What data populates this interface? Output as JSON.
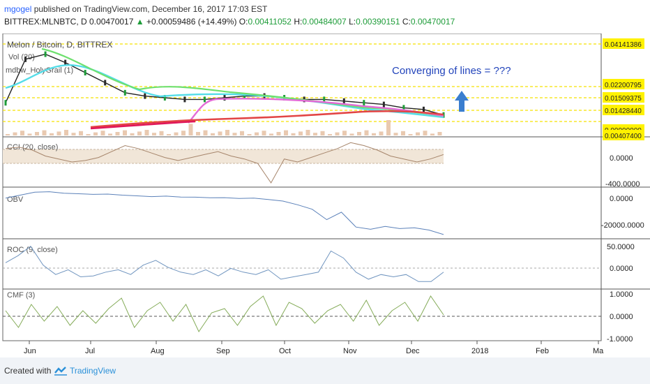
{
  "header": {
    "author": "mgogel",
    "published_text": "published on TradingView.com, December 16, 2017 17:03 EST",
    "symbol_line": "BITTREX:MLNBTC, D 0.00470017",
    "change_arrow": "▲",
    "change": "+0.00059486 (+14.49%)",
    "o_label": "O:",
    "o_value": "0.00411052",
    "h_label": "H:",
    "h_value": "0.00484007",
    "l_label": "L:",
    "l_value": "0.00390151",
    "c_label": "C:",
    "c_value": "0.00470017"
  },
  "footer": {
    "created_with": "Created with",
    "brand": "TradingView"
  },
  "colors": {
    "up": "#1e9c39",
    "link": "#2962ff",
    "annotation": "#2244bb",
    "arrow": "#3a7ecf",
    "price_label_bg": "#fff200",
    "ma_cyan": "#55dde8",
    "ma_green": "#6ee06e",
    "ma_magenta": "#e36bd7",
    "ma_red": "#e24545",
    "ma_crimson": "#e0185a",
    "cci_line": "#a6856b",
    "obv_line": "#5b81b9",
    "roc_line": "#6f94bf",
    "cmf_line": "#84ab58"
  },
  "chart_data": [
    {
      "type": "line",
      "title": "Melon / Bitcoin, D, BITTREX",
      "indicator_labels": [
        "Vol (20)",
        "mdbw_HolyGrail (1)"
      ],
      "annotation": "Converging of lines = ???",
      "x_axis_labels": [
        "Jun",
        "Jul",
        "Aug",
        "Sep",
        "Oct",
        "Nov",
        "Dec",
        "2018",
        "Feb",
        "Ma"
      ],
      "price_labels": [
        "0.04141386",
        "0.02200795",
        "0.01509375",
        "0.01428440",
        "0.00000000",
        "0.00407400"
      ],
      "series": [
        {
          "values": [
            0.012,
            0.038,
            0.041,
            0.036,
            0.03,
            0.024,
            0.018,
            0.016,
            0.015,
            0.014,
            0.014,
            0.015,
            0.016,
            0.016,
            0.015,
            0.014,
            0.014,
            0.013,
            0.012,
            0.011,
            0.009,
            0.008,
            0.0047
          ]
        }
      ]
    },
    {
      "type": "line",
      "title": "CCI (20, close)",
      "axis_labels": [
        "0.0000",
        "-400.0000"
      ],
      "series": [
        {
          "values": [
            80,
            100,
            60,
            -20,
            -60,
            -100,
            -80,
            -40,
            40,
            120,
            80,
            20,
            -40,
            -80,
            -40,
            0,
            40,
            -20,
            -60,
            -120,
            -380,
            -60,
            -100,
            -40,
            20,
            80,
            160,
            120,
            60,
            -20,
            -60,
            -100,
            -60,
            0
          ]
        }
      ]
    },
    {
      "type": "line",
      "title": "OBV",
      "axis_labels": [
        "0.0000",
        "-20000.0000"
      ],
      "series": [
        {
          "values": [
            -500,
            1500,
            3500,
            3800,
            2800,
            2400,
            2000,
            2200,
            1500,
            1000,
            500,
            800,
            200,
            100,
            -300,
            -200,
            -800,
            -500,
            -1500,
            -2500,
            -5000,
            -8000,
            -15000,
            -10000,
            -20000,
            -21500,
            -19500,
            -21000,
            -20500,
            -22000,
            -25000
          ]
        }
      ]
    },
    {
      "type": "line",
      "title": "ROC (9, close)",
      "axis_labels": [
        "50.0000",
        "0.0000"
      ],
      "series": [
        {
          "values": [
            20,
            35,
            55,
            15,
            -5,
            5,
            -10,
            -8,
            0,
            5,
            -5,
            15,
            25,
            10,
            0,
            -5,
            5,
            -8,
            8,
            0,
            -5,
            5,
            -15,
            -10,
            -5,
            0,
            45,
            30,
            0,
            -15,
            -5,
            -10,
            -5,
            -20,
            -20,
            0
          ]
        }
      ]
    },
    {
      "type": "line",
      "title": "CMF (3)",
      "axis_labels": [
        "1.0000",
        "0.0000",
        "-1.0000"
      ],
      "series": [
        {
          "values": [
            0.2,
            -0.6,
            0.5,
            -0.3,
            0.4,
            -0.5,
            0.2,
            -0.4,
            0.3,
            0.8,
            -0.6,
            0.2,
            0.6,
            -0.3,
            0.5,
            -0.8,
            0.1,
            0.3,
            -0.5,
            0.4,
            0.9,
            -0.5,
            0.6,
            0.3,
            -0.4,
            0.2,
            0.5,
            -0.3,
            0.7,
            -0.5,
            0.2,
            0.6,
            -0.3,
            0.9,
            0.0
          ]
        }
      ]
    }
  ]
}
